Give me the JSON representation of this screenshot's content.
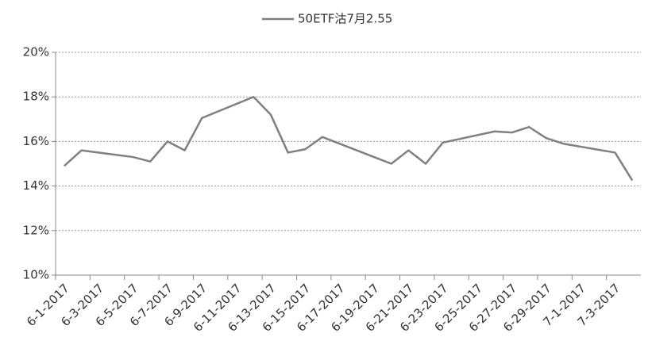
{
  "chart_data": {
    "type": "line",
    "x": [
      "6-1-2017",
      "6-2-2017",
      "6-5-2017",
      "6-6-2017",
      "6-7-2017",
      "6-8-2017",
      "6-9-2017",
      "6-12-2017",
      "6-13-2017",
      "6-14-2017",
      "6-15-2017",
      "6-16-2017",
      "6-19-2017",
      "6-20-2017",
      "6-21-2017",
      "6-22-2017",
      "6-23-2017",
      "6-26-2017",
      "6-27-2017",
      "6-28-2017",
      "6-29-2017",
      "6-30-2017",
      "7-3-2017",
      "7-4-2017"
    ],
    "series": [
      {
        "name": "50ETF沽7月2.55",
        "color": "#808080",
        "values": [
          14.9,
          15.6,
          15.3,
          15.1,
          16.0,
          15.6,
          17.05,
          18.0,
          17.2,
          15.5,
          15.65,
          16.2,
          15.3,
          15.0,
          15.6,
          15.0,
          15.95,
          16.45,
          16.4,
          16.65,
          16.15,
          15.9,
          15.5,
          14.25
        ]
      }
    ],
    "xlim": [
      "6-1-2017",
      "7-4-2017"
    ],
    "xticks": [
      "6-1-2017",
      "6-3-2017",
      "6-5-2017",
      "6-7-2017",
      "6-9-2017",
      "6-11-2017",
      "6-13-2017",
      "6-15-2017",
      "6-17-2017",
      "6-19-2017",
      "6-21-2017",
      "6-23-2017",
      "6-25-2017",
      "6-27-2017",
      "6-29-2017",
      "7-1-2017",
      "7-3-2017"
    ],
    "ylim": [
      10,
      20
    ],
    "yticks": [
      {
        "value": 10,
        "label": "10%"
      },
      {
        "value": 12,
        "label": "12%"
      },
      {
        "value": 14,
        "label": "14%"
      },
      {
        "value": 16,
        "label": "16%"
      },
      {
        "value": 18,
        "label": "18%"
      },
      {
        "value": 20,
        "label": "20%"
      }
    ],
    "grid": true,
    "legend": "top"
  }
}
